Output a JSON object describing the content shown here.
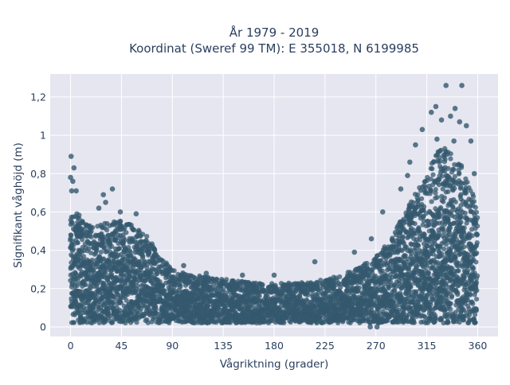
{
  "chart_data": {
    "type": "scatter",
    "title_lines": [
      "År 1979 - 2019",
      "Koordinat (Sweref 99 TM): E 355018, N 6199985"
    ],
    "xlabel": "Vågriktning (grader)",
    "ylabel": "Signifikant våghöjd (m)",
    "xlim": [
      -18,
      378
    ],
    "ylim": [
      -0.05,
      1.32
    ],
    "x_ticks": [
      0,
      45,
      90,
      135,
      180,
      225,
      270,
      315,
      360
    ],
    "x_tick_labels": [
      "0",
      "45",
      "90",
      "135",
      "180",
      "225",
      "270",
      "315",
      "360"
    ],
    "y_ticks": [
      0,
      0.2,
      0.4,
      0.6,
      0.8,
      1.0,
      1.2
    ],
    "y_tick_labels": [
      "0",
      "0,2",
      "0,4",
      "0,6",
      "0,8",
      "1",
      "1,2"
    ],
    "grid": true,
    "marker_color": "#34586e",
    "plot_bg": "#e5e6f0",
    "envelope": {
      "x": [
        0,
        5,
        10,
        20,
        30,
        40,
        50,
        60,
        70,
        80,
        90,
        100,
        110,
        120,
        135,
        150,
        165,
        180,
        195,
        210,
        225,
        240,
        255,
        270,
        280,
        290,
        300,
        310,
        315,
        320,
        325,
        330,
        335,
        340,
        345,
        350,
        355,
        360
      ],
      "y": [
        0.56,
        0.58,
        0.55,
        0.5,
        0.52,
        0.54,
        0.52,
        0.5,
        0.44,
        0.34,
        0.3,
        0.27,
        0.26,
        0.25,
        0.24,
        0.23,
        0.22,
        0.22,
        0.22,
        0.23,
        0.24,
        0.26,
        0.3,
        0.35,
        0.42,
        0.52,
        0.62,
        0.72,
        0.78,
        0.85,
        0.88,
        0.9,
        0.88,
        0.86,
        0.82,
        0.75,
        0.7,
        0.55
      ]
    },
    "outliers": [
      {
        "x": 0.5,
        "y": 0.89
      },
      {
        "x": 3,
        "y": 0.83
      },
      {
        "x": 0,
        "y": 0.78
      },
      {
        "x": 2,
        "y": 0.76
      },
      {
        "x": 1,
        "y": 0.71
      },
      {
        "x": 5,
        "y": 0.71
      },
      {
        "x": 29,
        "y": 0.69
      },
      {
        "x": 37,
        "y": 0.72
      },
      {
        "x": 31,
        "y": 0.65
      },
      {
        "x": 25,
        "y": 0.62
      },
      {
        "x": 44,
        "y": 0.6
      },
      {
        "x": 58,
        "y": 0.59
      },
      {
        "x": 332,
        "y": 1.26
      },
      {
        "x": 346,
        "y": 1.26
      },
      {
        "x": 323,
        "y": 1.15
      },
      {
        "x": 340,
        "y": 1.14
      },
      {
        "x": 319,
        "y": 1.12
      },
      {
        "x": 336,
        "y": 1.1
      },
      {
        "x": 328,
        "y": 1.08
      },
      {
        "x": 344,
        "y": 1.07
      },
      {
        "x": 311,
        "y": 1.03
      },
      {
        "x": 350,
        "y": 1.05
      },
      {
        "x": 324,
        "y": 0.98
      },
      {
        "x": 339,
        "y": 0.97
      },
      {
        "x": 305,
        "y": 0.95
      },
      {
        "x": 354,
        "y": 0.97
      },
      {
        "x": 300,
        "y": 0.86
      },
      {
        "x": 357,
        "y": 0.8
      },
      {
        "x": 298,
        "y": 0.79
      },
      {
        "x": 292,
        "y": 0.72
      },
      {
        "x": 276,
        "y": 0.6
      },
      {
        "x": 266,
        "y": 0.46
      },
      {
        "x": 251,
        "y": 0.39
      },
      {
        "x": 216,
        "y": 0.34
      },
      {
        "x": 152,
        "y": 0.27
      },
      {
        "x": 100,
        "y": 0.32
      },
      {
        "x": 120,
        "y": 0.28
      },
      {
        "x": 265,
        "y": 0.0
      },
      {
        "x": 271,
        "y": 0.0
      },
      {
        "x": 180,
        "y": 0.27
      }
    ]
  }
}
